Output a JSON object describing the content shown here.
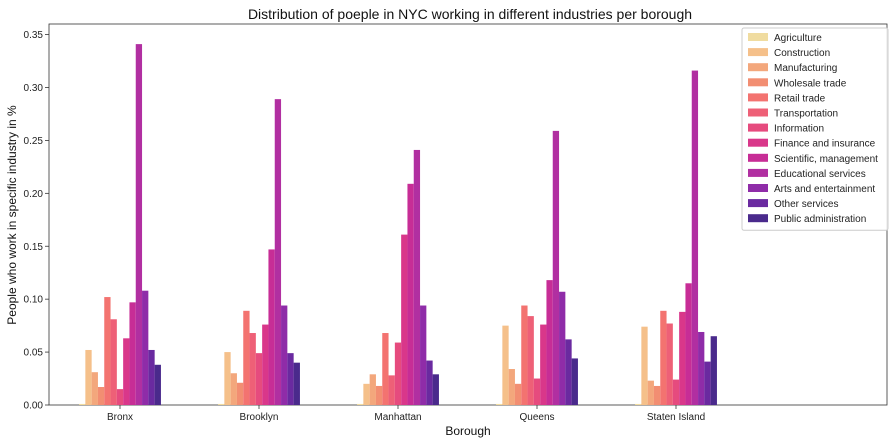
{
  "chart_data": {
    "type": "bar",
    "title": "Distribution of poeple in NYC working in different industries per borough",
    "xlabel": "Borough",
    "ylabel": "People who work in specific industry in %",
    "ylim": [
      0,
      0.36
    ],
    "yticks": [
      "0.00",
      "0.05",
      "0.10",
      "0.15",
      "0.20",
      "0.25",
      "0.30",
      "0.35"
    ],
    "categories": [
      "Bronx",
      "Brooklyn",
      "Manhattan",
      "Queens",
      "Staten Island"
    ],
    "legend_position": "top-right",
    "grid": false,
    "series": [
      {
        "name": "Agriculture",
        "color": "#f0dca0",
        "values": [
          0.001,
          0.001,
          0.001,
          0.001,
          0.001
        ]
      },
      {
        "name": "Construction",
        "color": "#f5c08a",
        "values": [
          0.052,
          0.05,
          0.02,
          0.075,
          0.074
        ]
      },
      {
        "name": "Manufacturing",
        "color": "#f3a77c",
        "values": [
          0.031,
          0.03,
          0.029,
          0.034,
          0.023
        ]
      },
      {
        "name": "Wholesale trade",
        "color": "#f28e72",
        "values": [
          0.017,
          0.021,
          0.018,
          0.02,
          0.018
        ]
      },
      {
        "name": "Retail trade",
        "color": "#f37370",
        "values": [
          0.102,
          0.089,
          0.068,
          0.094,
          0.089
        ]
      },
      {
        "name": "Transportation",
        "color": "#ee6077",
        "values": [
          0.081,
          0.068,
          0.028,
          0.084,
          0.077
        ]
      },
      {
        "name": "Information",
        "color": "#e64b7e",
        "values": [
          0.015,
          0.049,
          0.059,
          0.025,
          0.024
        ]
      },
      {
        "name": "Finance and insurance",
        "color": "#d9378a",
        "values": [
          0.063,
          0.076,
          0.161,
          0.076,
          0.088
        ]
      },
      {
        "name": "Scientific, management",
        "color": "#c72d96",
        "values": [
          0.097,
          0.147,
          0.209,
          0.118,
          0.115
        ]
      },
      {
        "name": "Educational services",
        "color": "#b12fa1",
        "values": [
          0.341,
          0.289,
          0.241,
          0.259,
          0.316
        ]
      },
      {
        "name": "Arts and entertainment",
        "color": "#8f2ca8",
        "values": [
          0.108,
          0.094,
          0.094,
          0.107,
          0.069
        ]
      },
      {
        "name": "Other services",
        "color": "#6a2aa0",
        "values": [
          0.052,
          0.049,
          0.042,
          0.062,
          0.041
        ]
      },
      {
        "name": "Public administration",
        "color": "#4a2a8c",
        "values": [
          0.038,
          0.04,
          0.029,
          0.044,
          0.065
        ]
      }
    ]
  }
}
